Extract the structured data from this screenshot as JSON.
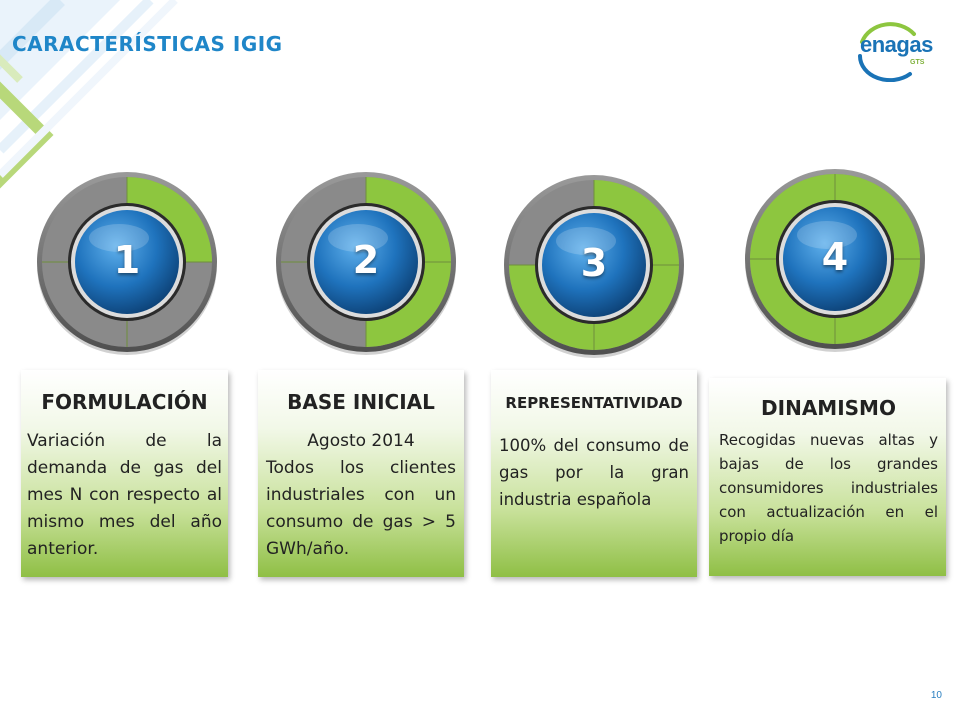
{
  "slide": {
    "title": "CARACTERÍSTICAS IGIG",
    "page_number": "10",
    "accent_color": "#1f86c8",
    "green_color": "#8dc63f"
  },
  "logo": {
    "word": "enagas",
    "sub": "GTS"
  },
  "items": [
    {
      "number": "1",
      "fill_fraction": 0.25,
      "title": "FORMULACIÓN",
      "body": "Variación de la demanda de gas del mes N con respecto al mismo mes del año anterior."
    },
    {
      "number": "2",
      "fill_fraction": 0.5,
      "title": "BASE INICIAL",
      "body_lines": [
        "Agosto 2014",
        "Todos los clientes industriales con un consumo de gas > 5 GWh/año."
      ]
    },
    {
      "number": "3",
      "fill_fraction": 0.75,
      "title": "REPRESENTATIVIDAD",
      "body": "100% del consumo de gas por la gran industria española"
    },
    {
      "number": "4",
      "fill_fraction": 1.0,
      "title": "DINAMISMO",
      "body": "Recogidas nuevas altas y bajas de los grandes consumidores industriales con actualización en el propio día"
    }
  ]
}
